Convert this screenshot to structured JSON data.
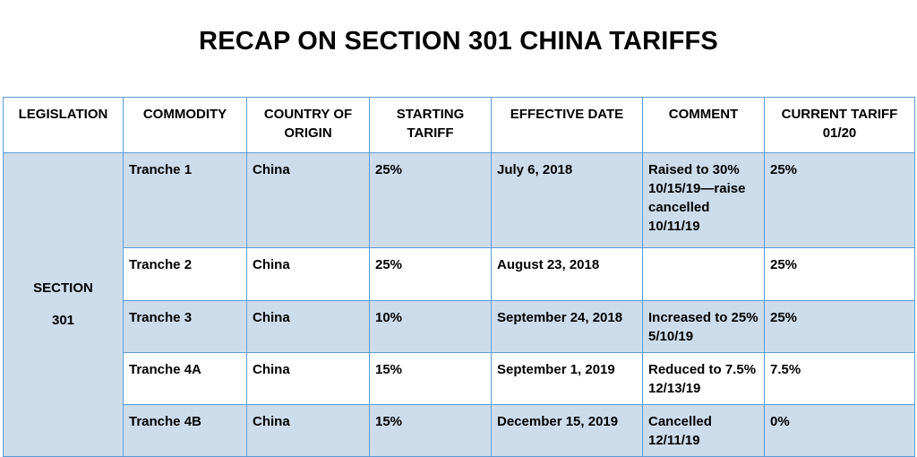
{
  "header": {
    "title": "RECAP ON SECTION 301 CHINA TARIFFS"
  },
  "table": {
    "columns": [
      "LEGISLATION",
      "COMMODITY",
      "COUNTRY OF ORIGIN",
      "STARTING TARIFF",
      "EFFECTIVE DATE",
      "COMMENT",
      "CURRENT TARIFF 01/20"
    ],
    "legislation": "SECTION 301",
    "rows": [
      [
        "Tranche 1",
        "China",
        "25%",
        "July 6, 2018",
        "Raised to 30% 10/15/19—raise cancelled 10/11/19",
        "25%"
      ],
      [
        "Tranche 2",
        "China",
        "25%",
        "August 23, 2018",
        null,
        "25%"
      ],
      [
        "Tranche 3",
        "China",
        "10%",
        "September 24, 2018",
        "Increased to 25% 5/10/19",
        "25%"
      ],
      [
        "Tranche 4A",
        "China",
        "15%",
        "September 1, 2019",
        "Reduced to 7.5% 12/13/19",
        "7.5%"
      ],
      [
        "Tranche 4B",
        "China",
        "15%",
        "December 15, 2019",
        "Cancelled 12/11/19",
        "0%"
      ]
    ]
  }
}
